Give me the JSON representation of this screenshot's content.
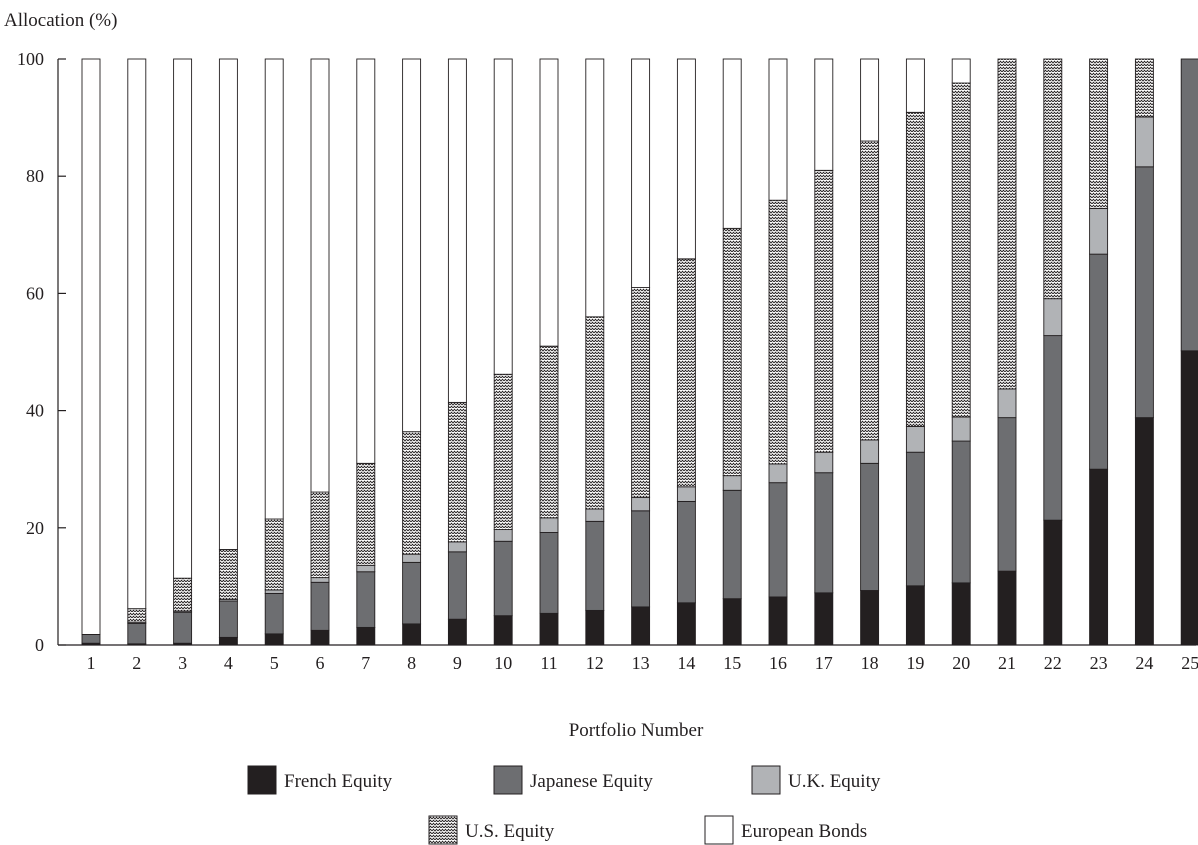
{
  "chart_data": {
    "type": "bar",
    "stacked": true,
    "title": "",
    "ylabel": "Allocation (%)",
    "xlabel": "Portfolio Number",
    "ylim": [
      0,
      100
    ],
    "yticks": [
      0,
      20,
      40,
      60,
      80,
      100
    ],
    "grid": false,
    "legend_position": "bottom",
    "categories": [
      "1",
      "2",
      "3",
      "4",
      "5",
      "6",
      "7",
      "8",
      "9",
      "10",
      "11",
      "12",
      "13",
      "14",
      "15",
      "16",
      "17",
      "18",
      "19",
      "20",
      "21",
      "22",
      "23",
      "24",
      "25"
    ],
    "series": [
      {
        "name": "French Equity",
        "fill": "solid",
        "color": "#231f20",
        "values": [
          0.3,
          0.2,
          0.3,
          1.3,
          1.9,
          2.5,
          3.0,
          3.6,
          4.4,
          5.0,
          5.4,
          5.9,
          6.5,
          7.2,
          7.9,
          8.2,
          8.9,
          9.3,
          10.1,
          10.6,
          12.6,
          21.3,
          30.0,
          38.8,
          50.2
        ]
      },
      {
        "name": "Japanese Equity",
        "fill": "solid",
        "color": "#6d6e71",
        "values": [
          1.5,
          3.5,
          5.3,
          6.2,
          6.9,
          8.2,
          9.5,
          10.5,
          11.5,
          12.7,
          13.8,
          15.2,
          16.4,
          17.3,
          18.5,
          19.5,
          20.5,
          21.7,
          22.8,
          24.2,
          26.2,
          31.5,
          36.7,
          42.8,
          49.8
        ]
      },
      {
        "name": "U.K. Equity",
        "fill": "solid",
        "color": "#b1b3b6",
        "values": [
          0.0,
          0.2,
          0.2,
          0.3,
          0.6,
          0.8,
          1.1,
          1.4,
          1.7,
          2.0,
          2.5,
          2.1,
          2.3,
          2.5,
          2.5,
          3.2,
          3.5,
          4.0,
          4.4,
          4.1,
          4.9,
          6.3,
          7.8,
          8.5,
          0.0
        ]
      },
      {
        "name": "U.S. Equity",
        "fill": "zigzag",
        "color": "#231f20",
        "values": [
          0.0,
          2.3,
          5.6,
          8.5,
          12.1,
          14.6,
          17.4,
          20.9,
          23.8,
          26.5,
          29.3,
          32.8,
          35.8,
          38.9,
          42.2,
          45.0,
          48.1,
          51.0,
          53.6,
          57.0,
          56.3,
          40.9,
          25.5,
          9.9,
          0.0
        ]
      },
      {
        "name": "European Bonds",
        "fill": "empty",
        "color": "#ffffff",
        "values": [
          98.2,
          93.8,
          88.6,
          83.7,
          78.5,
          73.9,
          69.0,
          63.6,
          58.6,
          53.8,
          49.0,
          44.0,
          39.0,
          34.1,
          28.9,
          24.1,
          19.0,
          14.0,
          9.1,
          4.1,
          0.0,
          0.0,
          0.0,
          0.0,
          0.0
        ]
      }
    ]
  }
}
